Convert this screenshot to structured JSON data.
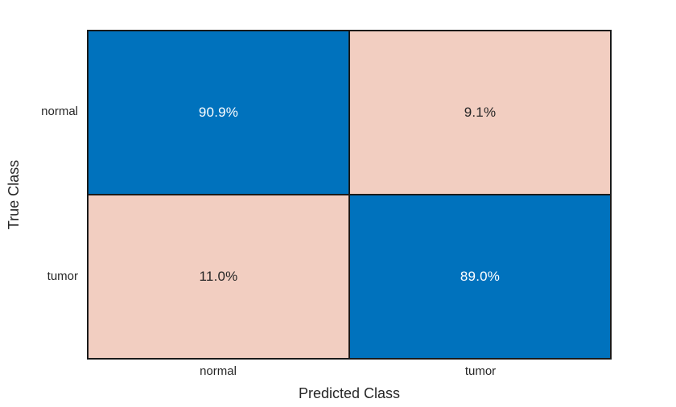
{
  "chart_data": {
    "type": "heatmap",
    "subtype": "confusion-matrix",
    "title": "",
    "xlabel": "Predicted Class",
    "ylabel": "True Class",
    "x_categories": [
      "normal",
      "tumor"
    ],
    "y_categories": [
      "normal",
      "tumor"
    ],
    "cells": [
      {
        "row": "normal",
        "col": "normal",
        "label": "90.9%",
        "value": 90.9,
        "kind": "diagonal"
      },
      {
        "row": "normal",
        "col": "tumor",
        "label": "9.1%",
        "value": 9.1,
        "kind": "off-diagonal"
      },
      {
        "row": "tumor",
        "col": "normal",
        "label": "11.0%",
        "value": 11.0,
        "kind": "off-diagonal"
      },
      {
        "row": "tumor",
        "col": "tumor",
        "label": "89.0%",
        "value": 89.0,
        "kind": "diagonal"
      }
    ],
    "layout": {
      "legend": "none",
      "grid": "on",
      "background": "#ffffff"
    },
    "colors": {
      "diagonal": "#0072BD",
      "off_diagonal": "#F2CEC1",
      "grid": "#1a1a1a",
      "text_on_diagonal": "#ffffff",
      "text_on_off_diagonal": "#262626",
      "axis_text": "#262626"
    }
  }
}
